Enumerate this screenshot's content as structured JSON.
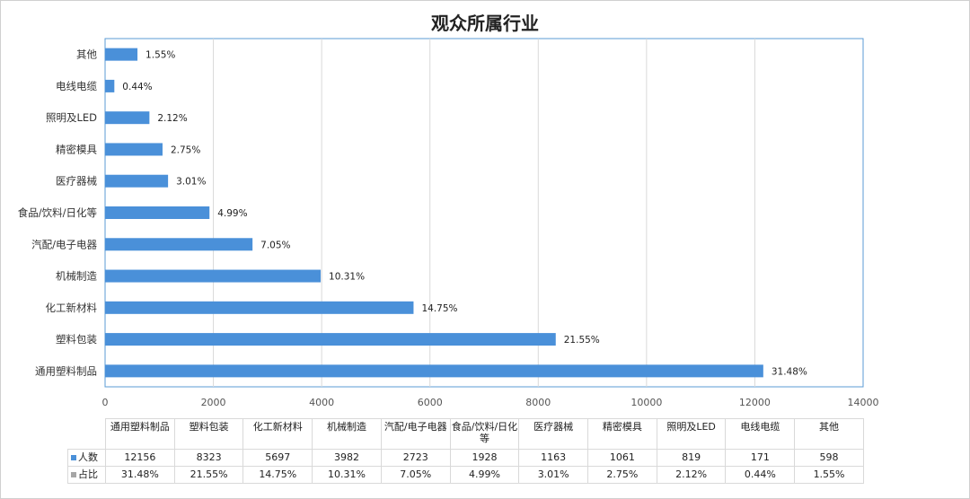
{
  "chart_data": {
    "type": "bar",
    "orientation": "horizontal",
    "title": "观众所属行业",
    "categories": [
      "通用塑料制品",
      "塑料包装",
      "化工新材料",
      "机械制造",
      "汽配/电子电器",
      "食品/饮料/日化等",
      "医疗器械",
      "精密模具",
      "照明及LED",
      "电线电缆",
      "其他"
    ],
    "series": [
      {
        "name": "人数",
        "values": [
          12156,
          8323,
          5697,
          3982,
          2723,
          1928,
          1163,
          1061,
          819,
          171,
          598
        ],
        "color": "#4a90d9"
      },
      {
        "name": "占比",
        "values": [
          "31.48%",
          "21.55%",
          "14.75%",
          "10.31%",
          "7.05%",
          "4.99%",
          "3.01%",
          "2.75%",
          "2.12%",
          "0.44%",
          "1.55%"
        ],
        "color": "#a6a6a6"
      }
    ],
    "xlim": [
      0,
      14000
    ],
    "xticks": [
      0,
      2000,
      4000,
      6000,
      8000,
      10000,
      12000,
      14000
    ],
    "grid": true,
    "data_table": true
  }
}
